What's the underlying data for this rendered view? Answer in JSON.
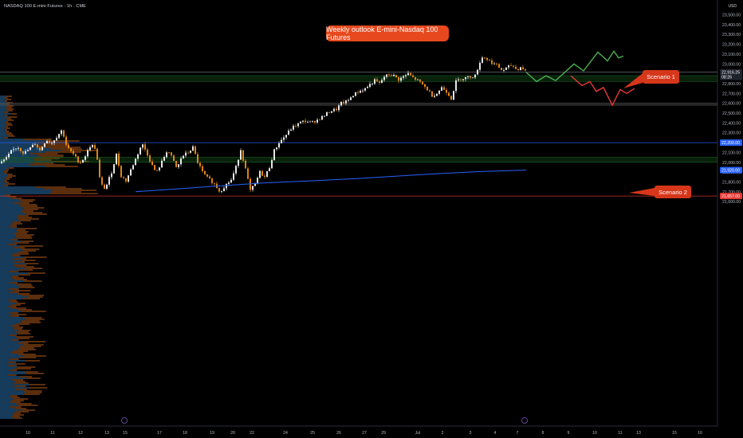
{
  "header": {
    "symbol": "NASDAQ 100 E-mini Futures · 1h · CME",
    "currency": "USD"
  },
  "title": "Weekly outlook E-mini-Nasdaq 100 Futures",
  "annotations": {
    "scenario1": "Scenario 1",
    "scenario2": "Scenario 2"
  },
  "price_tags": {
    "current_price": "22,916.25",
    "countdown": "08:26",
    "level_blue": "22,200.00",
    "level_ma": "21,920.00",
    "level_red": "21,657.00"
  },
  "colors": {
    "bull_candle": "#ffffff",
    "bear_candle": "#f7931a",
    "scenario1_arrow": "#4caf50",
    "scenario2_arrow": "#e53935",
    "moving_average": "#2962ff",
    "zone_green": "#1b5e20",
    "annotation_bg": "#d6361a",
    "volume_profile_blue": "#1e4f7a",
    "volume_profile_orange": "#7a3d12"
  },
  "chart_data": {
    "type": "candlestick",
    "instrument": "E-mini Nasdaq 100 Futures",
    "timeframe": "1h",
    "ylim": [
      21550,
      23600
    ],
    "y_ticks": [
      21600,
      21700,
      21800,
      21900,
      22000,
      22100,
      22200,
      22300,
      22400,
      22500,
      22600,
      22700,
      22800,
      22900,
      23000,
      23100,
      23200,
      23300,
      23400,
      23500
    ],
    "y_tick_labels": [
      "21,600.00",
      "21,700.00",
      "21,800.00",
      "21,900.00",
      "22,000.00",
      "22,100.00",
      "22,200.00",
      "22,300.00",
      "22,400.00",
      "22,500.00",
      "22,600.00",
      "22,700.00",
      "22,800.00",
      "22,900.00",
      "23,000.00",
      "23,100.00",
      "23,200.00",
      "23,300.00",
      "23,400.00",
      "23,500.00"
    ],
    "x_tick_labels": [
      "10",
      "11",
      "12",
      "13",
      "15",
      "17",
      "18",
      "19",
      "20",
      "22",
      "24",
      "25",
      "26",
      "27",
      "29",
      "Jul",
      "2",
      "3",
      "4",
      "7",
      "8",
      "9",
      "10",
      "11",
      "13",
      "15",
      "16"
    ],
    "price_path": [
      [
        0,
        21990
      ],
      [
        8,
        22040
      ],
      [
        14,
        22110
      ],
      [
        22,
        22160
      ],
      [
        30,
        22090
      ],
      [
        36,
        22130
      ],
      [
        44,
        22190
      ],
      [
        50,
        22120
      ],
      [
        58,
        22230
      ],
      [
        64,
        22190
      ],
      [
        72,
        22270
      ],
      [
        78,
        22330
      ],
      [
        84,
        22150
      ],
      [
        92,
        22080
      ],
      [
        100,
        21990
      ],
      [
        106,
        22050
      ],
      [
        114,
        22180
      ],
      [
        120,
        22140
      ],
      [
        126,
        21780
      ],
      [
        132,
        21730
      ],
      [
        140,
        21900
      ],
      [
        146,
        22080
      ],
      [
        152,
        21860
      ],
      [
        158,
        21810
      ],
      [
        166,
        21960
      ],
      [
        172,
        22070
      ],
      [
        178,
        22190
      ],
      [
        184,
        22100
      ],
      [
        190,
        21980
      ],
      [
        196,
        21890
      ],
      [
        204,
        22020
      ],
      [
        210,
        22130
      ],
      [
        216,
        22040
      ],
      [
        222,
        21930
      ],
      [
        228,
        22060
      ],
      [
        236,
        22100
      ],
      [
        242,
        22150
      ],
      [
        248,
        22000
      ],
      [
        254,
        21900
      ],
      [
        260,
        21840
      ],
      [
        268,
        21790
      ],
      [
        276,
        21700
      ],
      [
        282,
        21760
      ],
      [
        290,
        21820
      ],
      [
        296,
        21950
      ],
      [
        302,
        22130
      ],
      [
        308,
        21930
      ],
      [
        314,
        21710
      ],
      [
        320,
        21780
      ],
      [
        326,
        21900
      ],
      [
        332,
        21850
      ],
      [
        338,
        21950
      ],
      [
        344,
        22120
      ],
      [
        350,
        22200
      ],
      [
        358,
        22270
      ],
      [
        366,
        22350
      ],
      [
        372,
        22380
      ],
      [
        378,
        22410
      ],
      [
        384,
        22420
      ],
      [
        390,
        22400
      ],
      [
        398,
        22430
      ],
      [
        406,
        22470
      ],
      [
        414,
        22520
      ],
      [
        422,
        22540
      ],
      [
        428,
        22600
      ],
      [
        436,
        22620
      ],
      [
        442,
        22680
      ],
      [
        450,
        22720
      ],
      [
        458,
        22750
      ],
      [
        464,
        22790
      ],
      [
        470,
        22830
      ],
      [
        476,
        22800
      ],
      [
        482,
        22870
      ],
      [
        488,
        22890
      ],
      [
        494,
        22880
      ],
      [
        500,
        22840
      ],
      [
        506,
        22870
      ],
      [
        512,
        22900
      ],
      [
        518,
        22860
      ],
      [
        524,
        22830
      ],
      [
        530,
        22790
      ],
      [
        536,
        22740
      ],
      [
        542,
        22680
      ],
      [
        548,
        22700
      ],
      [
        554,
        22760
      ],
      [
        560,
        22720
      ],
      [
        566,
        22650
      ],
      [
        572,
        22820
      ],
      [
        578,
        22850
      ],
      [
        584,
        22860
      ],
      [
        590,
        22870
      ],
      [
        596,
        22880
      ],
      [
        602,
        23020
      ],
      [
        606,
        23080
      ],
      [
        612,
        23040
      ],
      [
        618,
        23010
      ],
      [
        624,
        22980
      ],
      [
        630,
        22930
      ],
      [
        636,
        22960
      ],
      [
        642,
        22990
      ],
      [
        648,
        22940
      ],
      [
        654,
        22970
      ],
      [
        660,
        22916
      ]
    ],
    "moving_average": [
      [
        170,
        21700
      ],
      [
        250,
        21745
      ],
      [
        330,
        21790
      ],
      [
        400,
        21815
      ],
      [
        450,
        21835
      ],
      [
        500,
        21860
      ],
      [
        550,
        21885
      ],
      [
        600,
        21905
      ],
      [
        660,
        21920
      ]
    ],
    "levels": [
      {
        "price": 22916.25,
        "color": "#787b86",
        "label": "current"
      },
      {
        "price": 22200,
        "color": "#2962ff"
      },
      {
        "price": 21657,
        "color": "#e53935"
      }
    ],
    "zones": [
      {
        "from": 22820,
        "to": 22880,
        "color": "#1b5e20"
      },
      {
        "from": 22580,
        "to": 22600,
        "color": "#555555"
      },
      {
        "from": 22000,
        "to": 22050,
        "color": "#1b5e20"
      }
    ],
    "scenario1_path": [
      [
        660,
        22916
      ],
      [
        673,
        22820
      ],
      [
        685,
        22880
      ],
      [
        697,
        22830
      ],
      [
        720,
        23000
      ],
      [
        732,
        22930
      ],
      [
        750,
        23120
      ],
      [
        762,
        23030
      ],
      [
        770,
        23130
      ],
      [
        776,
        23060
      ],
      [
        782,
        23080
      ]
    ],
    "scenario2_path": [
      [
        716,
        22880
      ],
      [
        730,
        22780
      ],
      [
        740,
        22820
      ],
      [
        748,
        22720
      ],
      [
        757,
        22760
      ],
      [
        768,
        22580
      ],
      [
        778,
        22740
      ],
      [
        786,
        22700
      ],
      [
        796,
        22750
      ]
    ],
    "annotations": [
      "Scenario 1",
      "Scenario 2"
    ]
  }
}
